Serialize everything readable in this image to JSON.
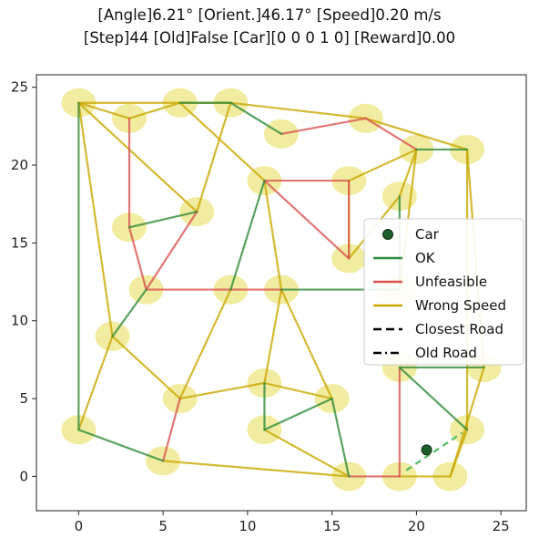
{
  "chart_data": {
    "type": "line",
    "title_lines": [
      "[Angle]6.21° [Orient.]46.17° [Speed]0.20 m/s",
      "[Step]44 [Old]False [Car][0 0 0 1 0] [Reward]0.00"
    ],
    "xlim": [
      -2.5,
      26.5
    ],
    "ylim": [
      -2.2,
      25.8
    ],
    "x_ticks": [
      0,
      5,
      10,
      15,
      20,
      25
    ],
    "y_ticks": [
      0,
      5,
      10,
      15,
      20,
      25
    ],
    "colors": {
      "ok": "#2e8b3a",
      "unfeasible": "#d9534f",
      "wrong_speed": "#c9a800",
      "node": "#e6dc50",
      "car": "#1f5e2a",
      "closest_road": "#5cbf6a"
    },
    "nodes": [
      [
        0,
        24
      ],
      [
        3,
        23
      ],
      [
        6,
        24
      ],
      [
        9,
        24
      ],
      [
        12,
        22
      ],
      [
        17,
        23
      ],
      [
        20,
        21
      ],
      [
        23,
        21
      ],
      [
        3,
        16
      ],
      [
        7,
        17
      ],
      [
        11,
        19
      ],
      [
        16,
        19
      ],
      [
        19,
        18
      ],
      [
        16,
        14
      ],
      [
        4,
        12
      ],
      [
        9,
        12
      ],
      [
        12,
        12
      ],
      [
        19,
        12
      ],
      [
        2,
        9
      ],
      [
        19,
        7
      ],
      [
        24,
        7
      ],
      [
        6,
        5
      ],
      [
        11,
        6
      ],
      [
        15,
        5
      ],
      [
        11,
        3
      ],
      [
        0,
        3
      ],
      [
        5,
        1
      ],
      [
        16,
        0
      ],
      [
        19,
        0
      ],
      [
        22,
        0
      ],
      [
        23,
        3
      ]
    ],
    "edges": {
      "ok": [
        [
          [
            0,
            24
          ],
          [
            0,
            3
          ]
        ],
        [
          [
            0,
            3
          ],
          [
            5,
            1
          ]
        ],
        [
          [
            3,
            16
          ],
          [
            7,
            17
          ]
        ],
        [
          [
            2,
            9
          ],
          [
            4,
            12
          ]
        ],
        [
          [
            6,
            24
          ],
          [
            9,
            24
          ]
        ],
        [
          [
            9,
            24
          ],
          [
            12,
            22
          ]
        ],
        [
          [
            9,
            12
          ],
          [
            11,
            19
          ]
        ],
        [
          [
            12,
            12
          ],
          [
            19,
            12
          ]
        ],
        [
          [
            19,
            18
          ],
          [
            19,
            12
          ]
        ],
        [
          [
            20,
            21
          ],
          [
            23,
            21
          ]
        ],
        [
          [
            19,
            7
          ],
          [
            24,
            7
          ]
        ],
        [
          [
            19,
            7
          ],
          [
            23,
            3
          ]
        ],
        [
          [
            15,
            5
          ],
          [
            16,
            0
          ]
        ],
        [
          [
            11,
            3
          ],
          [
            15,
            5
          ]
        ],
        [
          [
            11,
            3
          ],
          [
            11,
            6
          ]
        ]
      ],
      "unfeasible": [
        [
          [
            3,
            23
          ],
          [
            3,
            16
          ]
        ],
        [
          [
            3,
            16
          ],
          [
            4,
            12
          ]
        ],
        [
          [
            7,
            17
          ],
          [
            4,
            12
          ]
        ],
        [
          [
            4,
            12
          ],
          [
            9,
            12
          ]
        ],
        [
          [
            9,
            12
          ],
          [
            12,
            12
          ]
        ],
        [
          [
            12,
            22
          ],
          [
            17,
            23
          ]
        ],
        [
          [
            17,
            23
          ],
          [
            20,
            21
          ]
        ],
        [
          [
            11,
            19
          ],
          [
            16,
            19
          ]
        ],
        [
          [
            11,
            19
          ],
          [
            16,
            14
          ]
        ],
        [
          [
            16,
            19
          ],
          [
            16,
            14
          ]
        ],
        [
          [
            6,
            5
          ],
          [
            5,
            1
          ]
        ],
        [
          [
            19,
            7
          ],
          [
            19,
            0
          ]
        ],
        [
          [
            16,
            0
          ],
          [
            19,
            0
          ]
        ]
      ],
      "wrong_speed": [
        [
          [
            0,
            24
          ],
          [
            6,
            24
          ]
        ],
        [
          [
            0,
            24
          ],
          [
            3,
            23
          ]
        ],
        [
          [
            3,
            23
          ],
          [
            6,
            24
          ]
        ],
        [
          [
            0,
            24
          ],
          [
            2,
            9
          ]
        ],
        [
          [
            0,
            24
          ],
          [
            7,
            17
          ]
        ],
        [
          [
            6,
            24
          ],
          [
            9,
            24
          ]
        ],
        [
          [
            9,
            24
          ],
          [
            17,
            23
          ]
        ],
        [
          [
            17,
            23
          ],
          [
            23,
            21
          ]
        ],
        [
          [
            6,
            24
          ],
          [
            11,
            19
          ]
        ],
        [
          [
            11,
            19
          ],
          [
            12,
            12
          ]
        ],
        [
          [
            12,
            12
          ],
          [
            15,
            5
          ]
        ],
        [
          [
            9,
            12
          ],
          [
            6,
            5
          ]
        ],
        [
          [
            7,
            17
          ],
          [
            9,
            24
          ]
        ],
        [
          [
            2,
            9
          ],
          [
            6,
            5
          ]
        ],
        [
          [
            6,
            5
          ],
          [
            11,
            6
          ]
        ],
        [
          [
            11,
            6
          ],
          [
            15,
            5
          ]
        ],
        [
          [
            11,
            6
          ],
          [
            12,
            12
          ]
        ],
        [
          [
            0,
            3
          ],
          [
            2,
            9
          ]
        ],
        [
          [
            5,
            1
          ],
          [
            16,
            0
          ]
        ],
        [
          [
            16,
            0
          ],
          [
            11,
            3
          ]
        ],
        [
          [
            16,
            19
          ],
          [
            20,
            21
          ]
        ],
        [
          [
            16,
            19
          ],
          [
            16,
            14
          ]
        ],
        [
          [
            16,
            14
          ],
          [
            19,
            18
          ]
        ],
        [
          [
            19,
            18
          ],
          [
            20,
            21
          ]
        ],
        [
          [
            19,
            12
          ],
          [
            20,
            21
          ]
        ],
        [
          [
            23,
            21
          ],
          [
            24,
            7
          ]
        ],
        [
          [
            23,
            21
          ],
          [
            23,
            3
          ]
        ],
        [
          [
            24,
            7
          ],
          [
            22,
            0
          ]
        ],
        [
          [
            22,
            0
          ],
          [
            23,
            3
          ]
        ],
        [
          [
            19,
            0
          ],
          [
            22,
            0
          ]
        ]
      ]
    },
    "car": {
      "x": 20.6,
      "y": 1.7,
      "orientation_deg": 46.17
    },
    "closest_road": [
      [
        19.4,
        0.4
      ],
      [
        22.7,
        2.8
      ]
    ],
    "legend": {
      "placement": "center-right",
      "entries": [
        {
          "label": "Car",
          "kind": "marker",
          "color_key": "car"
        },
        {
          "label": "OK",
          "kind": "line",
          "color_key": "ok"
        },
        {
          "label": "Unfeasible",
          "kind": "line",
          "color_key": "unfeasible"
        },
        {
          "label": "Wrong Speed",
          "kind": "line",
          "color_key": "wrong_speed"
        },
        {
          "label": "Closest Road",
          "kind": "dashed",
          "color_key": "black"
        },
        {
          "label": "Old Road",
          "kind": "dashdot",
          "color_key": "black"
        }
      ]
    }
  }
}
